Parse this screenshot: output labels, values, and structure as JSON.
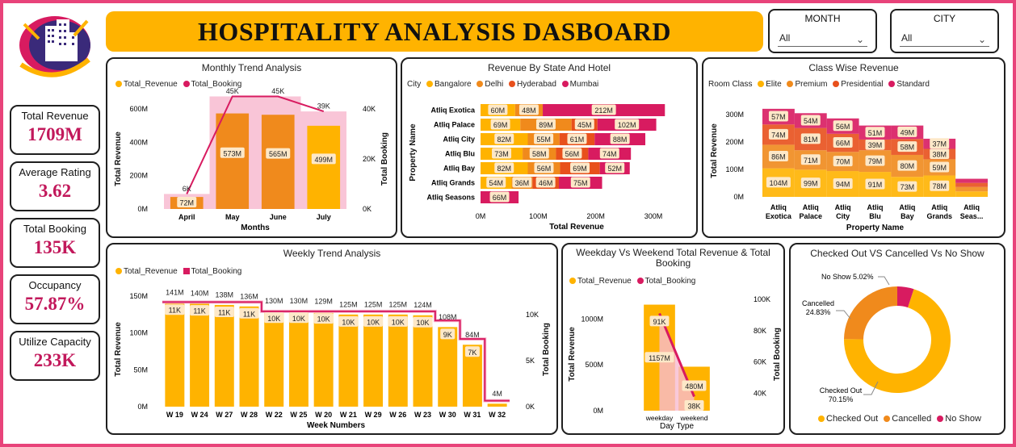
{
  "header": {
    "title": "HOSPITALITY ANALYSIS DASBOARD"
  },
  "slicers": {
    "month": {
      "label": "MONTH",
      "value": "All"
    },
    "city": {
      "label": "CITY",
      "value": "All"
    }
  },
  "kpis": [
    {
      "label": "Total Revenue",
      "value": "1709M"
    },
    {
      "label": "Average Rating",
      "value": "3.62"
    },
    {
      "label": "Total Booking",
      "value": "135K"
    },
    {
      "label": "Occupancy",
      "value": "57.87%"
    },
    {
      "label": "Utilize Capacity",
      "value": "233K"
    }
  ],
  "colors": {
    "revenue": "#ffb300",
    "booking": "#d81b60",
    "bangalore": "#ffb300",
    "delhi": "#f08a1c",
    "hyderabad": "#e8501c",
    "mumbai": "#d81b60",
    "elite": "#ffb300",
    "premium": "#f08a1c",
    "presidential": "#e8501c",
    "standard": "#d81b60",
    "accent": "#e8437a"
  },
  "chart_data": [
    {
      "id": "monthly",
      "type": "bar",
      "title": "Monthly Trend Analysis",
      "legend": [
        "Total_Revenue",
        "Total_Booking"
      ],
      "categories": [
        "April",
        "May",
        "June",
        "July"
      ],
      "series": [
        {
          "name": "Total_Revenue",
          "values": [
            72,
            573,
            565,
            499
          ],
          "labels": [
            "72M",
            "573M",
            "565M",
            "499M"
          ]
        },
        {
          "name": "Total_Booking",
          "values": [
            6,
            45,
            45,
            39
          ],
          "labels": [
            "6K",
            "45K",
            "45K",
            "39K"
          ]
        }
      ],
      "xlabel": "Months",
      "ylabel": "Total Revenue",
      "y2label": "Total Booking",
      "yticks": [
        "0M",
        "200M",
        "400M",
        "600M"
      ],
      "ylim": [
        0,
        600
      ],
      "y2ticks": [
        "0K",
        "20K",
        "40K"
      ],
      "y2lim": [
        0,
        40
      ]
    },
    {
      "id": "state_hotel",
      "type": "bar",
      "title": "Revenue By State And Hotel",
      "legend_title": "City",
      "legend": [
        "Bangalore",
        "Delhi",
        "Hyderabad",
        "Mumbai"
      ],
      "categories": [
        "Atliq Exotica",
        "Atliq Palace",
        "Atliq City",
        "Atliq Blu",
        "Atliq Bay",
        "Atliq Grands",
        "Atliq Seasons"
      ],
      "rows": [
        {
          "values": [
            60,
            48,
            0,
            212
          ],
          "labels": [
            "60M",
            "48M",
            "",
            "212M"
          ]
        },
        {
          "values": [
            69,
            89,
            45,
            102
          ],
          "labels": [
            "69M",
            "89M",
            "45M",
            "102M"
          ]
        },
        {
          "values": [
            82,
            55,
            61,
            88
          ],
          "labels": [
            "82M",
            "55M",
            "61M",
            "88M"
          ]
        },
        {
          "values": [
            73,
            58,
            56,
            74
          ],
          "labels": [
            "73M",
            "58M",
            "56M",
            "74M"
          ]
        },
        {
          "values": [
            82,
            56,
            69,
            52
          ],
          "labels": [
            "82M",
            "56M",
            "69M",
            "52M"
          ]
        },
        {
          "values": [
            54,
            36,
            46,
            75
          ],
          "labels": [
            "54M",
            "36M",
            "46M",
            "75M"
          ]
        },
        {
          "values": [
            0,
            0,
            0,
            66
          ],
          "labels": [
            "",
            "",
            "",
            "66M"
          ]
        }
      ],
      "xlabel": "Total Revenue",
      "ylabel": "Property Name",
      "xticks": [
        "0M",
        "100M",
        "200M",
        "300M"
      ],
      "xlim": [
        0,
        300
      ]
    },
    {
      "id": "class_wise",
      "type": "bar",
      "title": "Class Wise Revenue",
      "legend_title": "Room Class",
      "legend": [
        "Elite",
        "Premium",
        "Presidential",
        "Standard"
      ],
      "categories": [
        "Atliq Exotica",
        "Atliq Palace",
        "Atliq City",
        "Atliq Blu",
        "Atliq Bay",
        "Atliq Grands",
        "Atliq Seas..."
      ],
      "stack_order": [
        "Elite",
        "Premium",
        "Presidential",
        "Standard"
      ],
      "columns": [
        {
          "values": [
            104,
            86,
            74,
            57
          ],
          "labels": [
            "104M",
            "86M",
            "74M",
            "57M"
          ]
        },
        {
          "values": [
            99,
            71,
            81,
            54
          ],
          "labels": [
            "99M",
            "71M",
            "81M",
            "54M"
          ]
        },
        {
          "values": [
            94,
            70,
            66,
            56
          ],
          "labels": [
            "94M",
            "70M",
            "66M",
            "56M"
          ]
        },
        {
          "values": [
            91,
            79,
            39,
            51
          ],
          "labels": [
            "91M",
            "79M",
            "39M",
            "51M"
          ]
        },
        {
          "values": [
            73,
            80,
            58,
            49
          ],
          "labels": [
            "73M",
            "80M",
            "58M",
            "49M"
          ]
        },
        {
          "values": [
            78,
            59,
            38,
            37
          ],
          "labels": [
            "78M",
            "59M",
            "38M",
            "37M"
          ]
        },
        {
          "values": [
            20,
            16,
            15,
            15
          ],
          "labels": [
            "",
            "",
            "",
            ""
          ]
        }
      ],
      "xlabel": "Property Name",
      "ylabel": "Total Revenue",
      "yticks": [
        "0M",
        "100M",
        "200M",
        "300M"
      ],
      "ylim": [
        0,
        300
      ]
    },
    {
      "id": "weekly",
      "type": "bar",
      "title": "Weekly Trend Analysis",
      "legend": [
        "Total_Revenue",
        "Total_Booking"
      ],
      "categories": [
        "W 19",
        "W 24",
        "W 27",
        "W 28",
        "W 22",
        "W 25",
        "W 20",
        "W 21",
        "W 29",
        "W 26",
        "W 23",
        "W 30",
        "W 31",
        "W 32"
      ],
      "series": [
        {
          "name": "Total_Revenue",
          "values": [
            141,
            140,
            138,
            136,
            130,
            130,
            129,
            125,
            125,
            125,
            124,
            108,
            84,
            4
          ],
          "labels": [
            "141M",
            "140M",
            "138M",
            "136M",
            "130M",
            "130M",
            "129M",
            "125M",
            "125M",
            "125M",
            "124M",
            "108M",
            "84M",
            "4M"
          ]
        },
        {
          "name": "Total_Booking",
          "values": [
            11,
            11,
            11,
            11,
            10,
            10,
            10,
            10,
            10,
            10,
            10,
            9,
            7,
            0.3
          ],
          "labels": [
            "11K",
            "11K",
            "11K",
            "11K",
            "10K",
            "10K",
            "10K",
            "10K",
            "10K",
            "10K",
            "10K",
            "9K",
            "7K",
            ""
          ]
        }
      ],
      "xlabel": "Week Numbers",
      "ylabel": "Total Revenue",
      "y2label": "Total Booking",
      "yticks": [
        "0M",
        "50M",
        "100M",
        "150M"
      ],
      "ylim": [
        0,
        150
      ],
      "y2ticks": [
        "0K",
        "5K",
        "10K"
      ],
      "y2lim": [
        0,
        12
      ]
    },
    {
      "id": "weekday_weekend",
      "type": "bar",
      "title": "Weekday Vs Weekend Total Revenue & Total Booking",
      "legend": [
        "Total_Revenue",
        "Total_Booking"
      ],
      "categories": [
        "weekday",
        "weekend"
      ],
      "series": [
        {
          "name": "Total_Revenue",
          "values": [
            1157,
            480
          ],
          "labels": [
            "1157M",
            "480M"
          ]
        },
        {
          "name": "Total_Booking",
          "values": [
            91,
            38
          ],
          "labels": [
            "91K",
            "38K"
          ]
        }
      ],
      "xlabel": "Day Type",
      "ylabel": "Total Revenue",
      "y2label": "Total Booking",
      "yticks": [
        "0M",
        "500M",
        "1000M"
      ],
      "ylim": [
        0,
        1250
      ],
      "y2ticks": [
        "40K",
        "60K",
        "80K",
        "100K"
      ],
      "y2lim": [
        29,
        102
      ]
    },
    {
      "id": "status",
      "type": "pie",
      "title": "Checked Out VS Cancelled Vs No Show",
      "labels": [
        "Checked Out",
        "Cancelled",
        "No Show"
      ],
      "values": [
        70.15,
        24.83,
        5.02
      ],
      "slice_labels": [
        "70.15%",
        "24.83%",
        "5.02%"
      ],
      "legend": [
        "Checked Out",
        "Cancelled",
        "No Show"
      ]
    }
  ]
}
